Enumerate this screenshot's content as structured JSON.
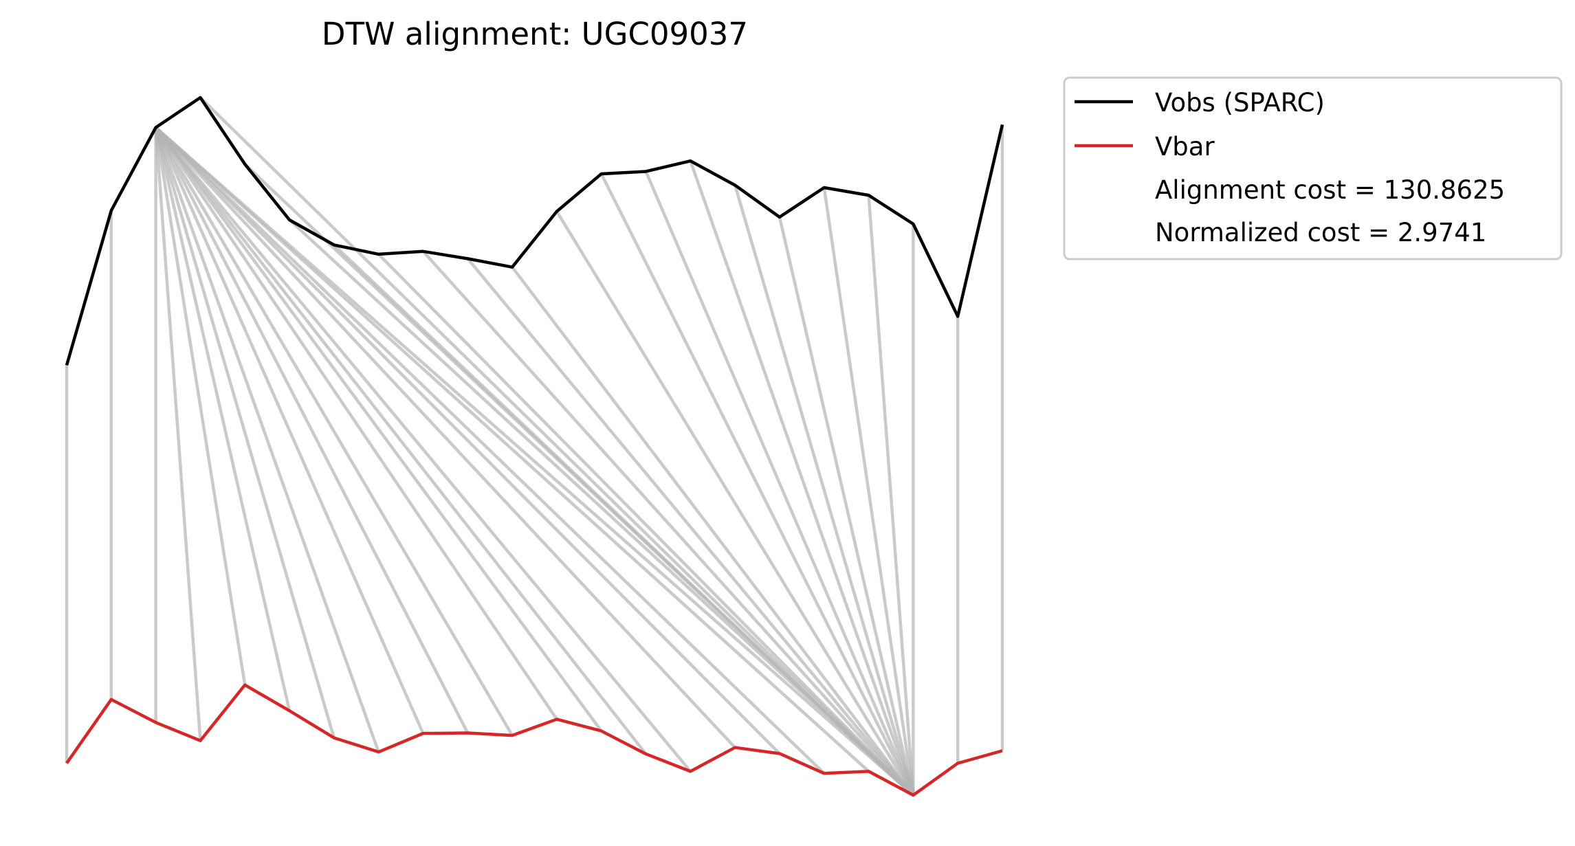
{
  "chart_data": {
    "type": "line",
    "title": "DTW alignment: UGC09037",
    "xlabel": "",
    "ylabel": "",
    "axes_visible": false,
    "grid": false,
    "legend_position": "outside-top-right",
    "x": [
      0,
      1,
      2,
      3,
      4,
      5,
      6,
      7,
      8,
      9,
      10,
      11,
      12,
      13,
      14,
      15,
      16,
      17,
      18,
      19,
      20,
      21
    ],
    "series": [
      {
        "name": "Vobs (SPARC)",
        "color": "#000000",
        "values": [
          0.0,
          3.83,
          5.89,
          6.63,
          4.98,
          3.6,
          2.98,
          2.75,
          2.82,
          2.64,
          2.43,
          3.81,
          4.74,
          4.8,
          5.06,
          4.46,
          3.67,
          4.4,
          4.21,
          3.5,
          1.21,
          5.96
        ]
      },
      {
        "name": "Vbar",
        "color": "#d62728",
        "values": [
          -9.86,
          -8.28,
          -8.85,
          -9.3,
          -7.92,
          -8.56,
          -9.23,
          -9.58,
          -9.12,
          -9.11,
          -9.17,
          -8.77,
          -9.06,
          -9.63,
          -10.06,
          -9.47,
          -9.62,
          -10.11,
          -10.06,
          -10.65,
          -9.86,
          -9.55
        ]
      }
    ],
    "alignment": {
      "color": "#b4b4b4",
      "pairs": [
        [
          0,
          0
        ],
        [
          1,
          1
        ],
        [
          2,
          2
        ],
        [
          2,
          3
        ],
        [
          2,
          4
        ],
        [
          2,
          5
        ],
        [
          2,
          6
        ],
        [
          2,
          7
        ],
        [
          2,
          8
        ],
        [
          2,
          9
        ],
        [
          2,
          10
        ],
        [
          2,
          11
        ],
        [
          2,
          12
        ],
        [
          2,
          13
        ],
        [
          2,
          14
        ],
        [
          2,
          15
        ],
        [
          2,
          16
        ],
        [
          2,
          17
        ],
        [
          2,
          18
        ],
        [
          2,
          19
        ],
        [
          3,
          19
        ],
        [
          4,
          19
        ],
        [
          5,
          19
        ],
        [
          6,
          19
        ],
        [
          7,
          19
        ],
        [
          8,
          19
        ],
        [
          9,
          19
        ],
        [
          10,
          19
        ],
        [
          11,
          19
        ],
        [
          12,
          19
        ],
        [
          13,
          19
        ],
        [
          14,
          19
        ],
        [
          15,
          19
        ],
        [
          16,
          19
        ],
        [
          17,
          19
        ],
        [
          18,
          19
        ],
        [
          19,
          19
        ],
        [
          20,
          20
        ],
        [
          21,
          21
        ]
      ]
    },
    "annotations": [
      "Alignment cost = 130.8625",
      "Normalized cost = 2.9741"
    ]
  }
}
